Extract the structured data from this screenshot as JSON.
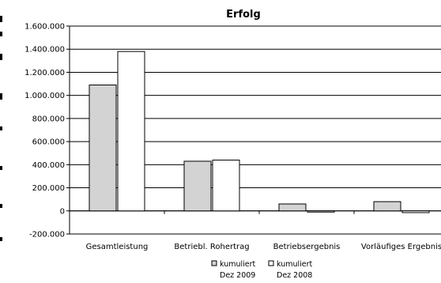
{
  "chart_data": {
    "type": "bar",
    "title": "Erfolg",
    "categories": [
      "Gesamtleistung",
      "Betriebl. Rohertrag",
      "Betriebsergebnis",
      "Vorläufiges Ergebnis"
    ],
    "series": [
      {
        "name": "kumuliert Dez 2009",
        "name_lines": [
          "kumuliert",
          "Dez 2009"
        ],
        "color": "#d3d3d3",
        "values": [
          1090000,
          430000,
          60000,
          80000
        ]
      },
      {
        "name": "kumuliert Dez 2008",
        "name_lines": [
          "kumuliert",
          "Dez 2008"
        ],
        "color": "#ffffff",
        "values": [
          1380000,
          440000,
          0,
          -15000
        ]
      }
    ],
    "ylim": [
      -200000,
      1600000
    ],
    "yticks": [
      1600000,
      1400000,
      1200000,
      1000000,
      800000,
      600000,
      400000,
      200000,
      0,
      -200000
    ],
    "ytick_labels": [
      "1.600.000",
      "1.400.000",
      "1.200.000",
      "1.000.000",
      "800.000",
      "600.000",
      "400.000",
      "200.000",
      "0",
      "-200.000"
    ],
    "grid": true,
    "legend_position": "bottom-center"
  }
}
